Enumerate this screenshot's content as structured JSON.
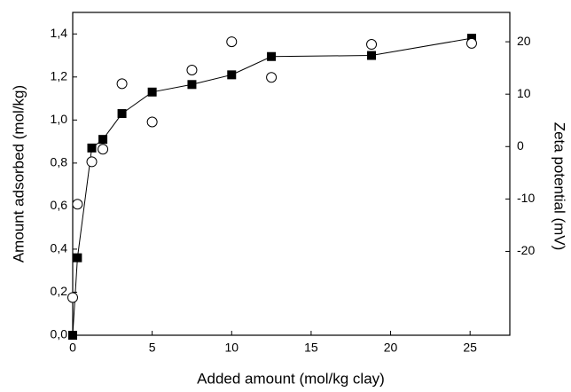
{
  "chart_data": {
    "type": "line",
    "x_label": "Added amount (mol/kg clay)",
    "y_label": "Amount adsorbed (mol/kg)",
    "y2_label": "Zeta potential (mV)",
    "xlim": [
      0,
      27.5
    ],
    "xticks": [
      0,
      5,
      10,
      15,
      20,
      25
    ],
    "ylim": [
      0,
      1.5
    ],
    "yticks": [
      {
        "value": 0,
        "label": "0,0"
      },
      {
        "value": 0.2,
        "label": "0,2"
      },
      {
        "value": 0.4,
        "label": "0,4"
      },
      {
        "value": 0.6,
        "label": "0,6"
      },
      {
        "value": 0.8,
        "label": "0,8"
      },
      {
        "value": 1.0,
        "label": "1,0"
      },
      {
        "value": 1.2,
        "label": "1,2"
      },
      {
        "value": 1.4,
        "label": "1,4"
      }
    ],
    "y2lim": [
      -36,
      25.6
    ],
    "y2ticks": [
      -20,
      -10,
      0,
      10,
      20
    ],
    "grid": false,
    "series": [
      {
        "color": "#000000",
        "marker": "square",
        "connect": true,
        "x": [
          0,
          0.3,
          1.2,
          1.9,
          3.1,
          5,
          7.5,
          10,
          12.5,
          18.8,
          25.1
        ],
        "values": [
          0,
          0.36,
          0.87,
          0.91,
          1.03,
          1.13,
          1.165,
          1.21,
          1.295,
          1.3,
          1.38
        ]
      },
      {
        "color": "#000000",
        "marker": "open-circle",
        "connect": false,
        "axis": "y2",
        "x": [
          0,
          0.3,
          1.2,
          1.9,
          3.1,
          5,
          7.5,
          10,
          12.5,
          18.8,
          25.1
        ],
        "values": [
          -28.8,
          -11,
          -2.9,
          -0.5,
          12,
          4.7,
          14.6,
          20,
          13.2,
          19.5,
          19.7
        ]
      }
    ]
  }
}
